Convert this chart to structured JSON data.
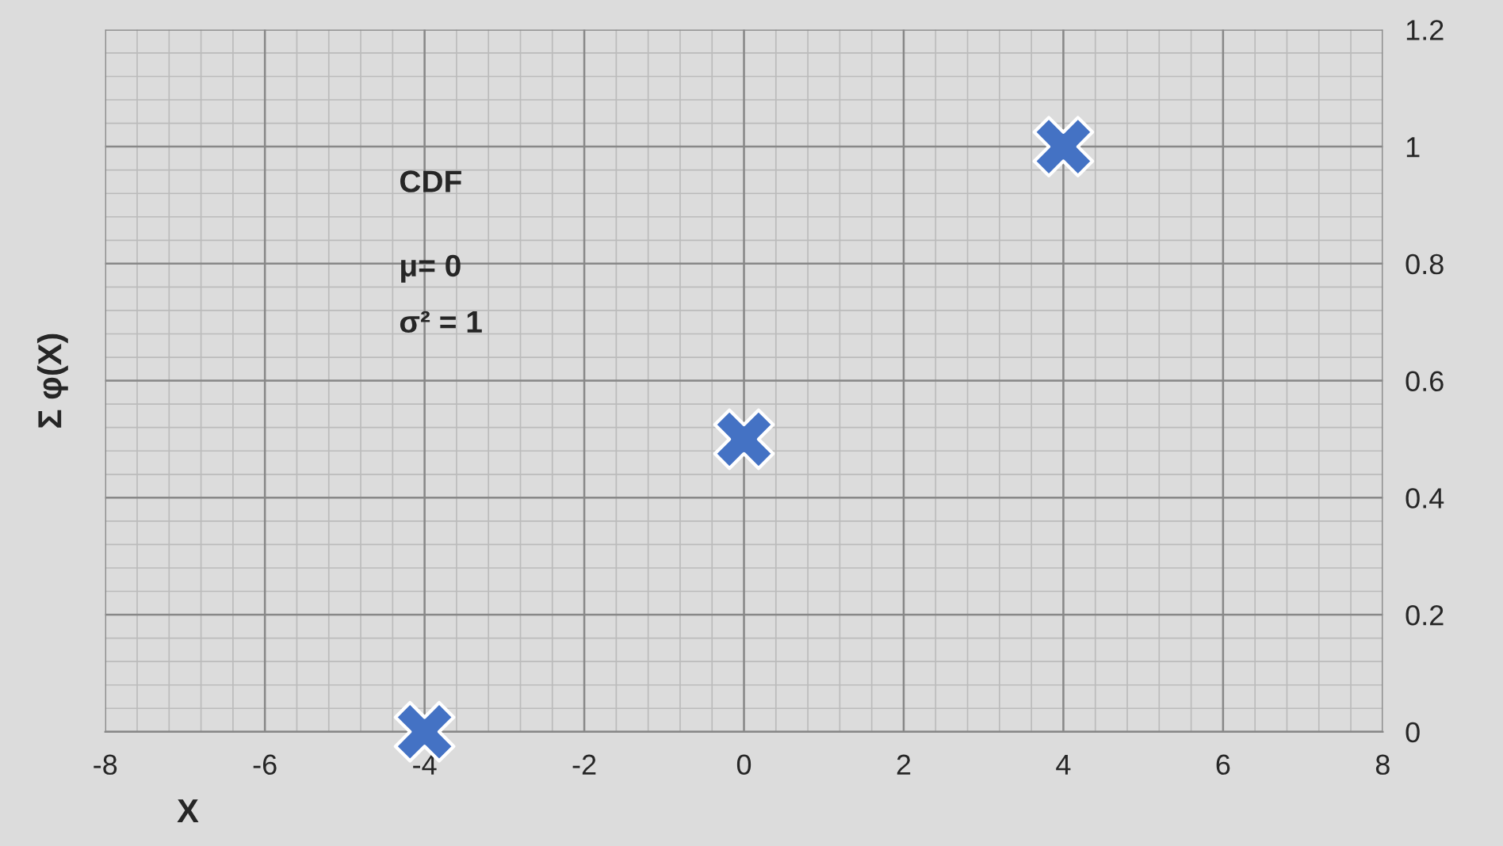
{
  "chart_data": {
    "type": "scatter",
    "xlabel": "X",
    "ylabel": "Σ φ(X)",
    "annotations": [
      "CDF",
      "μ= 0",
      "σ² = 1"
    ],
    "x": [
      -4,
      0,
      4
    ],
    "series": [
      {
        "color": "#4472c4",
        "values": [
          0,
          0.5,
          1
        ]
      }
    ],
    "xlim": [
      -8,
      8
    ],
    "xticks": [
      -8,
      -6,
      -4,
      -2,
      0,
      2,
      4,
      6,
      8
    ],
    "ylim": [
      0,
      1.2
    ],
    "yticks": [
      0,
      0.2,
      0.4,
      0.6,
      0.8,
      1,
      1.2
    ],
    "grid": true,
    "marker": "cross",
    "legend": false
  }
}
